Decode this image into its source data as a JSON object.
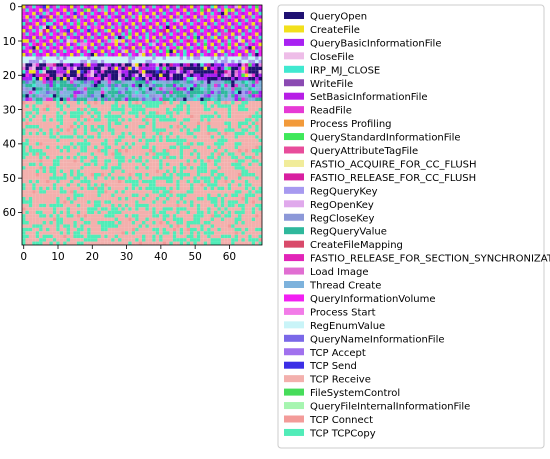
{
  "chart_data": {
    "type": "heatmap",
    "title": "",
    "xlabel": "",
    "ylabel": "",
    "grid_size": [
      70,
      70
    ],
    "xlim": [
      0,
      69
    ],
    "ylim": [
      69,
      0
    ],
    "x_ticks": [
      0,
      10,
      20,
      30,
      40,
      50,
      60
    ],
    "y_ticks": [
      0,
      10,
      20,
      30,
      40,
      50,
      60
    ],
    "legend_position": "right, outside plot",
    "dominant_class_rows_28_to_69": "TCP Receive",
    "secondary_class_rows_28_to_69": "TCP TCPCopy",
    "legend": [
      {
        "label": "QueryOpen",
        "color": "#1f1172"
      },
      {
        "label": "CreateFile",
        "color": "#f2e01c"
      },
      {
        "label": "QueryBasicInformationFile",
        "color": "#a821f2"
      },
      {
        "label": "CloseFile",
        "color": "#eebde8"
      },
      {
        "label": "IRP_MJ_CLOSE",
        "color": "#40e9d0"
      },
      {
        "label": "WriteFile",
        "color": "#8b4ab2"
      },
      {
        "label": "SetBasicInformationFile",
        "color": "#b71ee6"
      },
      {
        "label": "ReadFile",
        "color": "#e63ad5"
      },
      {
        "label": "Process Profiling",
        "color": "#f29a3a"
      },
      {
        "label": "QueryStandardInformationFile",
        "color": "#3fe85a"
      },
      {
        "label": "QueryAttributeTagFile",
        "color": "#e84d9b"
      },
      {
        "label": "FASTIO_ACQUIRE_FOR_CC_FLUSH",
        "color": "#f1ec9a"
      },
      {
        "label": "FASTIO_RELEASE_FOR_CC_FLUSH",
        "color": "#d81fa0"
      },
      {
        "label": "RegQueryKey",
        "color": "#a79af0"
      },
      {
        "label": "RegOpenKey",
        "color": "#e0a9ec"
      },
      {
        "label": "RegCloseKey",
        "color": "#8c98d8"
      },
      {
        "label": "RegQueryValue",
        "color": "#2fb89c"
      },
      {
        "label": "CreateFileMapping",
        "color": "#d94a6a"
      },
      {
        "label": "FASTIO_RELEASE_FOR_SECTION_SYNCHRONIZATION",
        "color": "#e224b8"
      },
      {
        "label": "Load Image",
        "color": "#e16ed2"
      },
      {
        "label": "Thread Create",
        "color": "#7db2dc"
      },
      {
        "label": "QueryInformationVolume",
        "color": "#f21ff2"
      },
      {
        "label": "Process Start",
        "color": "#f27be8"
      },
      {
        "label": "RegEnumValue",
        "color": "#c9f4f8"
      },
      {
        "label": "QueryNameInformationFile",
        "color": "#7a68e8"
      },
      {
        "label": "TCP Accept",
        "color": "#a171ee"
      },
      {
        "label": "TCP Send",
        "color": "#3b2ee6"
      },
      {
        "label": "TCP Receive",
        "color": "#f3b0ad"
      },
      {
        "label": "FileSystemControl",
        "color": "#46dc5a"
      },
      {
        "label": "QueryFileInternalInformationFile",
        "color": "#a6f5b0"
      },
      {
        "label": "TCP Connect",
        "color": "#f39b99"
      },
      {
        "label": "TCP TCPCopy",
        "color": "#51ecb8"
      }
    ]
  }
}
